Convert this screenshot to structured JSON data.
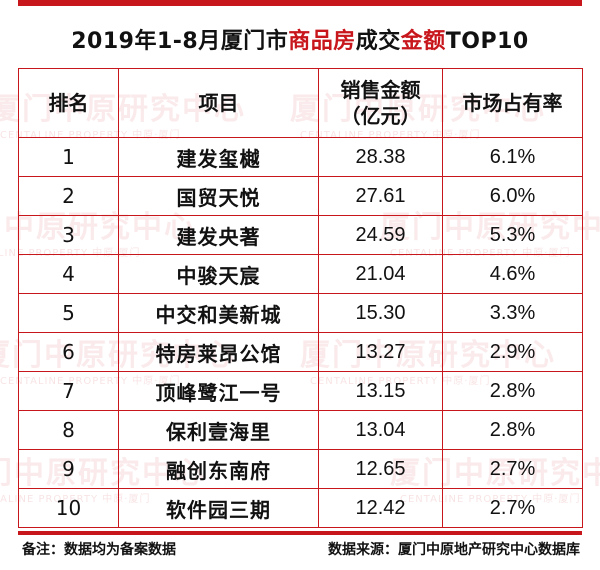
{
  "title": {
    "part1": "2019年1-8月厦门市",
    "part2": "商品房",
    "part3": "成交",
    "part4": "金额",
    "part5": "TOP10"
  },
  "colors": {
    "accent": "#c8161d",
    "text": "#111111"
  },
  "headers": {
    "rank": "排名",
    "project": "项目",
    "amount_line1": "销售金额",
    "amount_line2": "（亿元）",
    "share": "市场占有率"
  },
  "rows": [
    {
      "rank": "1",
      "project": "建发玺樾",
      "amount": "28.38",
      "share": "6.1%"
    },
    {
      "rank": "2",
      "project": "国贸天悦",
      "amount": "27.61",
      "share": "6.0%"
    },
    {
      "rank": "3",
      "project": "建发央著",
      "amount": "24.59",
      "share": "5.3%"
    },
    {
      "rank": "4",
      "project": "中骏天宸",
      "amount": "21.04",
      "share": "4.6%"
    },
    {
      "rank": "5",
      "project": "中交和美新城",
      "amount": "15.30",
      "share": "3.3%"
    },
    {
      "rank": "6",
      "project": "特房莱昂公馆",
      "amount": "13.27",
      "share": "2.9%"
    },
    {
      "rank": "7",
      "project": "顶峰鹭江一号",
      "amount": "13.15",
      "share": "2.8%"
    },
    {
      "rank": "8",
      "project": "保利壹海里",
      "amount": "13.04",
      "share": "2.8%"
    },
    {
      "rank": "9",
      "project": "融创东南府",
      "amount": "12.65",
      "share": "2.7%"
    },
    {
      "rank": "10",
      "project": "软件园三期",
      "amount": "12.42",
      "share": "2.7%"
    }
  ],
  "watermark": {
    "main": "厦门中原研究中心",
    "sub": "CENTALINE PROPERTY 中原·厦门"
  },
  "footer": {
    "note": "备注：数据均为备案数据",
    "source": "数据来源：厦门中原地产研究中心数据库"
  }
}
